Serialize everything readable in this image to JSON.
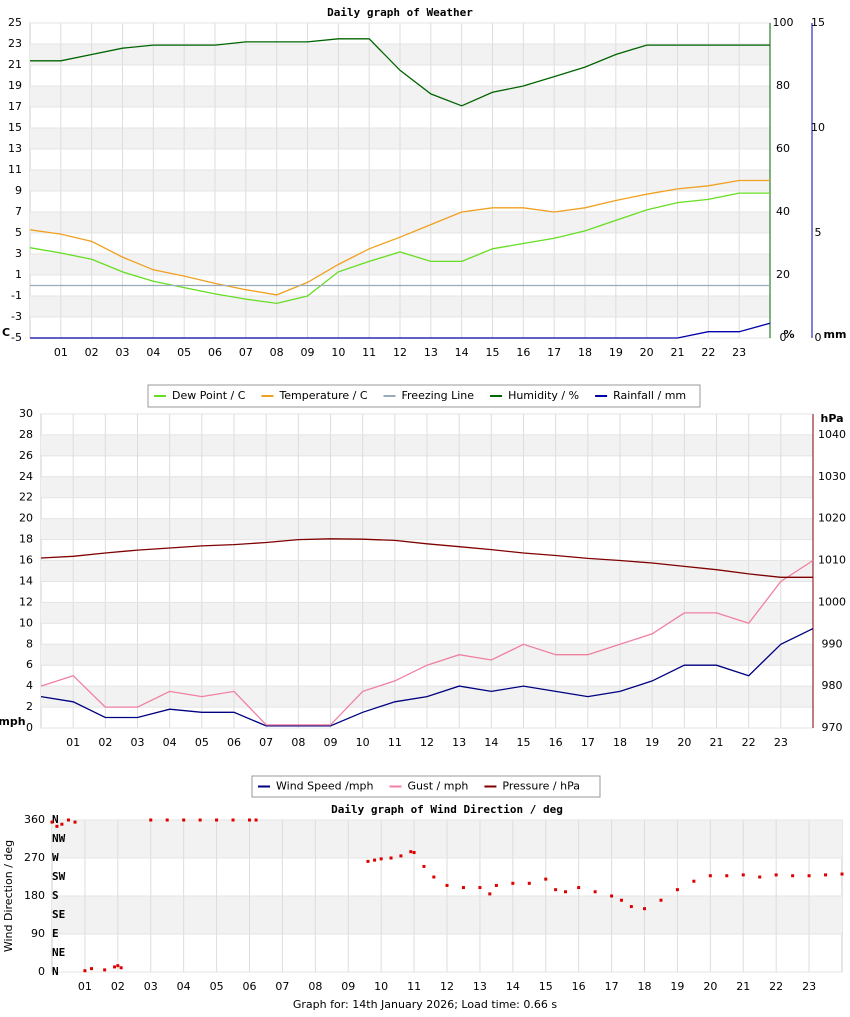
{
  "chart_data": [
    {
      "type": "line",
      "title": "Daily graph of Weather",
      "ylabel": "C",
      "y2label": "%",
      "y3label": "mm",
      "x": [
        0,
        1,
        2,
        3,
        4,
        5,
        6,
        7,
        8,
        9,
        10,
        11,
        12,
        13,
        14,
        15,
        16,
        17,
        18,
        19,
        20,
        21,
        22,
        23,
        24
      ],
      "xlim": [
        0,
        24
      ],
      "xticks": [
        {
          "value": 1,
          "label": "01"
        },
        {
          "value": 2,
          "label": "02"
        },
        {
          "value": 3,
          "label": "03"
        },
        {
          "value": 4,
          "label": "04"
        },
        {
          "value": 5,
          "label": "05"
        },
        {
          "value": 6,
          "label": "06"
        },
        {
          "value": 7,
          "label": "07"
        },
        {
          "value": 8,
          "label": "08"
        },
        {
          "value": 9,
          "label": "09"
        },
        {
          "value": 10,
          "label": "10"
        },
        {
          "value": 11,
          "label": "11"
        },
        {
          "value": 12,
          "label": "12"
        },
        {
          "value": 13,
          "label": "13"
        },
        {
          "value": 14,
          "label": "14"
        },
        {
          "value": 15,
          "label": "15"
        },
        {
          "value": 16,
          "label": "16"
        },
        {
          "value": 17,
          "label": "17"
        },
        {
          "value": 18,
          "label": "18"
        },
        {
          "value": 19,
          "label": "19"
        },
        {
          "value": 20,
          "label": "20"
        },
        {
          "value": 21,
          "label": "21"
        },
        {
          "value": 22,
          "label": "22"
        },
        {
          "value": 23,
          "label": "23"
        }
      ],
      "ylim": [
        -5,
        25
      ],
      "yticks": [
        -5,
        -3,
        -1,
        1,
        3,
        5,
        7,
        9,
        11,
        13,
        15,
        17,
        19,
        21,
        23,
        25
      ],
      "ycolor": "#e69a00",
      "y2lim": [
        0,
        100
      ],
      "y2ticks": [
        0,
        20,
        40,
        60,
        80,
        100
      ],
      "y2color": "#006400",
      "y3lim": [
        0,
        15
      ],
      "y3ticks": [
        0,
        5,
        10,
        15
      ],
      "y3color": "#0000aa",
      "grid": true,
      "legend": "bottom",
      "series": [
        {
          "name": "Dew Point / C",
          "color": "#66dd22",
          "values": [
            3.6,
            3.1,
            2.5,
            1.3,
            0.4,
            -0.2,
            -0.8,
            -1.3,
            -1.7,
            -1.0,
            1.3,
            2.3,
            3.2,
            2.3,
            2.3,
            3.5,
            4.0,
            4.5,
            5.2,
            6.2,
            7.2,
            7.9,
            8.2,
            8.8,
            8.8
          ]
        },
        {
          "name": "Temperature / C",
          "color": "#f0a020",
          "values": [
            5.3,
            4.9,
            4.2,
            2.7,
            1.5,
            0.9,
            0.2,
            -0.4,
            -0.9,
            0.3,
            2.0,
            3.5,
            4.6,
            5.8,
            7.0,
            7.4,
            7.4,
            7.0,
            7.4,
            8.1,
            8.7,
            9.2,
            9.5,
            10.0,
            10.0
          ]
        },
        {
          "name": "Freezing Line",
          "color": "#99aabb",
          "values": [
            0,
            0,
            0,
            0,
            0,
            0,
            0,
            0,
            0,
            0,
            0,
            0,
            0,
            0,
            0,
            0,
            0,
            0,
            0,
            0,
            0,
            0,
            0,
            0,
            0
          ]
        },
        {
          "name": "Humidity / %",
          "color": "#006400",
          "axis": "y2",
          "values": [
            88,
            88,
            90,
            92,
            93,
            93,
            93,
            94,
            94,
            94,
            95,
            95,
            85,
            77.5,
            73.7,
            78,
            80,
            83,
            86,
            90,
            93,
            93,
            93,
            93,
            93
          ]
        },
        {
          "name": "Rainfall / mm",
          "color": "#0000aa",
          "axis": "y3",
          "values": [
            0,
            0,
            0,
            0,
            0,
            0,
            0,
            0,
            0,
            0,
            0,
            0,
            0,
            0,
            0,
            0,
            0,
            0,
            0,
            0,
            0,
            0,
            0.3,
            0.3,
            0.7
          ]
        }
      ]
    },
    {
      "type": "line",
      "ylabel": "mph",
      "y2label": "hPa",
      "x": [
        0,
        1,
        2,
        3,
        4,
        5,
        6,
        7,
        8,
        9,
        10,
        11,
        12,
        13,
        14,
        15,
        16,
        17,
        18,
        19,
        20,
        21,
        22,
        23,
        24
      ],
      "xlim": [
        0,
        24
      ],
      "xticks": [
        {
          "value": 1,
          "label": "01"
        },
        {
          "value": 2,
          "label": "02"
        },
        {
          "value": 3,
          "label": "03"
        },
        {
          "value": 4,
          "label": "04"
        },
        {
          "value": 5,
          "label": "05"
        },
        {
          "value": 6,
          "label": "06"
        },
        {
          "value": 7,
          "label": "07"
        },
        {
          "value": 8,
          "label": "08"
        },
        {
          "value": 9,
          "label": "09"
        },
        {
          "value": 10,
          "label": "10"
        },
        {
          "value": 11,
          "label": "11"
        },
        {
          "value": 12,
          "label": "12"
        },
        {
          "value": 13,
          "label": "13"
        },
        {
          "value": 14,
          "label": "14"
        },
        {
          "value": 15,
          "label": "15"
        },
        {
          "value": 16,
          "label": "16"
        },
        {
          "value": 17,
          "label": "17"
        },
        {
          "value": 18,
          "label": "18"
        },
        {
          "value": 19,
          "label": "19"
        },
        {
          "value": 20,
          "label": "20"
        },
        {
          "value": 21,
          "label": "21"
        },
        {
          "value": 22,
          "label": "22"
        },
        {
          "value": 23,
          "label": "23"
        }
      ],
      "ylim": [
        0,
        30
      ],
      "yticks": [
        0,
        2,
        4,
        6,
        8,
        10,
        12,
        14,
        16,
        18,
        20,
        22,
        24,
        26,
        28,
        30
      ],
      "ycolor": "#000080",
      "y2lim": [
        970,
        1045
      ],
      "y2ticks": [
        970,
        980,
        990,
        1000,
        1010,
        1020,
        1030,
        1040
      ],
      "y2color": "#800000",
      "grid": true,
      "legend": "bottom",
      "series": [
        {
          "name": "Wind Speed /mph",
          "color": "#000080",
          "values": [
            3,
            2.5,
            1,
            1,
            1.8,
            1.5,
            1.5,
            0.2,
            0.2,
            0.2,
            1.5,
            2.5,
            3,
            4,
            3.5,
            4,
            3.5,
            3,
            3.5,
            4.5,
            6,
            6,
            5,
            8,
            9.5
          ]
        },
        {
          "name": "Gust / mph",
          "color": "#f080a0",
          "values": [
            4,
            5,
            2,
            2,
            3.5,
            3,
            3.5,
            0.3,
            0.3,
            0.3,
            3.5,
            4.5,
            6,
            7,
            6.5,
            8,
            7,
            7,
            8,
            9,
            11,
            11,
            10,
            14,
            16
          ]
        },
        {
          "name": "Pressure / hPa",
          "color": "#800000",
          "axis": "y2",
          "values": [
            1010.6,
            1011,
            1011.8,
            1012.5,
            1013,
            1013.5,
            1013.8,
            1014.3,
            1015,
            1015.2,
            1015.1,
            1014.8,
            1014,
            1013.3,
            1012.6,
            1011.8,
            1011.2,
            1010.5,
            1010,
            1009.4,
            1008.6,
            1007.8,
            1006.8,
            1006,
            1006
          ]
        }
      ]
    },
    {
      "type": "scatter",
      "title": "Daily graph of Wind Direction / deg",
      "ylabel": "Wind Direction / deg",
      "x": [
        0,
        0.15,
        0.3,
        0.5,
        0.7,
        1.0,
        1.2,
        1.6,
        1.9,
        2.0,
        2.1,
        3,
        3.5,
        4,
        4.5,
        5,
        5.5,
        6,
        6.2,
        9.6,
        9.8,
        10,
        10.3,
        10.6,
        10.9,
        11,
        11.3,
        11.6,
        12,
        12.5,
        13,
        13.3,
        13.5,
        14,
        14.5,
        15,
        15.3,
        15.6,
        16,
        16.5,
        17,
        17.3,
        17.6,
        18,
        18.5,
        19,
        19.5,
        20,
        20.5,
        21,
        21.5,
        22,
        22.5,
        23,
        23.5,
        24
      ],
      "values": [
        355,
        345,
        350,
        360,
        355,
        3,
        8,
        5,
        12,
        15,
        10,
        360,
        360,
        360,
        360,
        360,
        360,
        360,
        360,
        262,
        265,
        268,
        270,
        275,
        285,
        283,
        250,
        225,
        205,
        200,
        200,
        185,
        205,
        210,
        210,
        220,
        195,
        190,
        200,
        190,
        180,
        170,
        155,
        150,
        170,
        195,
        215,
        228,
        228,
        230,
        225,
        230,
        228,
        228,
        230,
        232
      ],
      "color": "#dd0000",
      "xlim": [
        0,
        24
      ],
      "xticks": [
        {
          "value": 1,
          "label": "01"
        },
        {
          "value": 2,
          "label": "02"
        },
        {
          "value": 3,
          "label": "03"
        },
        {
          "value": 4,
          "label": "04"
        },
        {
          "value": 5,
          "label": "05"
        },
        {
          "value": 6,
          "label": "06"
        },
        {
          "value": 7,
          "label": "07"
        },
        {
          "value": 8,
          "label": "08"
        },
        {
          "value": 9,
          "label": "09"
        },
        {
          "value": 10,
          "label": "10"
        },
        {
          "value": 11,
          "label": "11"
        },
        {
          "value": 12,
          "label": "12"
        },
        {
          "value": 13,
          "label": "13"
        },
        {
          "value": 14,
          "label": "14"
        },
        {
          "value": 15,
          "label": "15"
        },
        {
          "value": 16,
          "label": "16"
        },
        {
          "value": 17,
          "label": "17"
        },
        {
          "value": 18,
          "label": "18"
        },
        {
          "value": 19,
          "label": "19"
        },
        {
          "value": 20,
          "label": "20"
        },
        {
          "value": 21,
          "label": "21"
        },
        {
          "value": 22,
          "label": "22"
        },
        {
          "value": 23,
          "label": "23"
        }
      ],
      "ylim": [
        0,
        360
      ],
      "yticks": [
        0,
        90,
        180,
        270,
        360
      ],
      "ycolor": "#dd0000",
      "compass": [
        {
          "value": 360,
          "label": "N"
        },
        {
          "value": 315,
          "label": "NW"
        },
        {
          "value": 270,
          "label": "W"
        },
        {
          "value": 225,
          "label": "SW"
        },
        {
          "value": 180,
          "label": "S"
        },
        {
          "value": 135,
          "label": "SE"
        },
        {
          "value": 90,
          "label": "E"
        },
        {
          "value": 45,
          "label": "NE"
        },
        {
          "value": 0,
          "label": "N"
        }
      ],
      "grid": true
    }
  ],
  "footer": "Graph for: 14th January 2026; Load time: 0.66 s"
}
